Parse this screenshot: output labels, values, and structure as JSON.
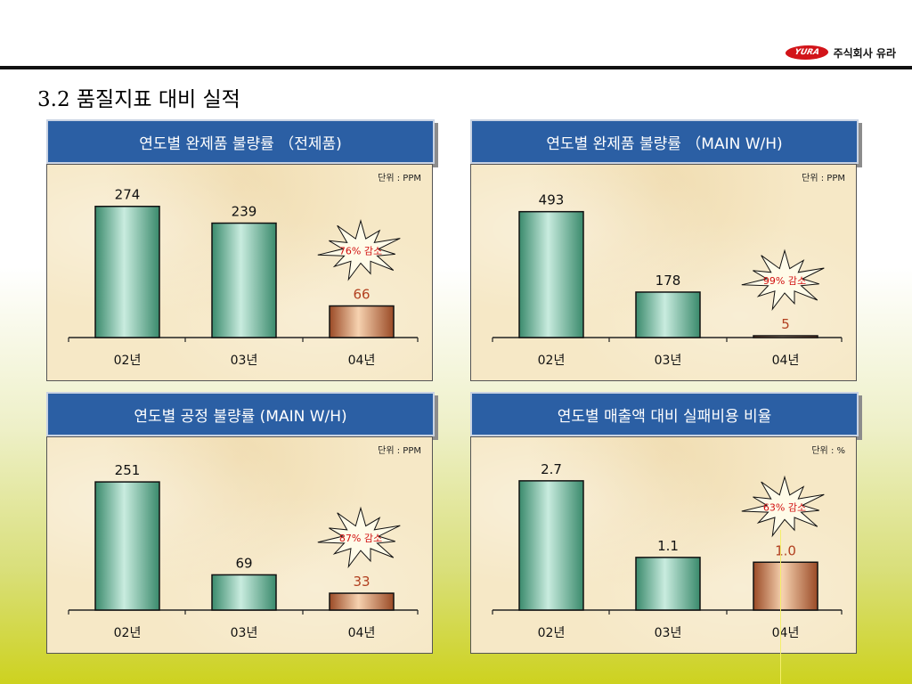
{
  "logo": {
    "mark": "YURA",
    "company": "주식회사 유라"
  },
  "page_title": "3.2 품질지표 대비 실적",
  "colors": {
    "header": "#2b5fa4",
    "bar_green": "#3f8f72",
    "bar_brown": "#a0502c",
    "burst_text": "#d11010",
    "value_red": "#b24020"
  },
  "chart_data": [
    {
      "type": "bar",
      "title": "연도별 완제품 불량률 （전제품)",
      "unit": "단위 : PPM",
      "categories": [
        "02년",
        "03년",
        "04년"
      ],
      "values": [
        274,
        239,
        66
      ],
      "value_labels": [
        "274",
        "239",
        "66"
      ],
      "callout": "76% 감소",
      "ylim": [
        0,
        320
      ]
    },
    {
      "type": "bar",
      "title": "연도별 완제품 불량률 （MAIN W/H)",
      "unit": "단위 : PPM",
      "categories": [
        "02년",
        "03년",
        "04년"
      ],
      "values": [
        493,
        178,
        5
      ],
      "value_labels": [
        "493",
        "178",
        "5"
      ],
      "callout": "99% 감소",
      "ylim": [
        0,
        600
      ]
    },
    {
      "type": "bar",
      "title": "연도별 공정 불량률 (MAIN W/H)",
      "unit": "단위 : PPM",
      "categories": [
        "02년",
        "03년",
        "04년"
      ],
      "values": [
        251,
        69,
        33
      ],
      "value_labels": [
        "251",
        "69",
        "33"
      ],
      "callout": "87% 감소",
      "ylim": [
        0,
        300
      ]
    },
    {
      "type": "bar",
      "title": "연도별 매출액 대비 실패비용 비율",
      "unit": "단위 : %",
      "categories": [
        "02년",
        "03년",
        "04년"
      ],
      "values": [
        2.7,
        1.1,
        1.0
      ],
      "value_labels": [
        "2.7",
        "1.1",
        "1.0"
      ],
      "callout": "63% 감소",
      "ylim": [
        0,
        3.2
      ]
    }
  ]
}
